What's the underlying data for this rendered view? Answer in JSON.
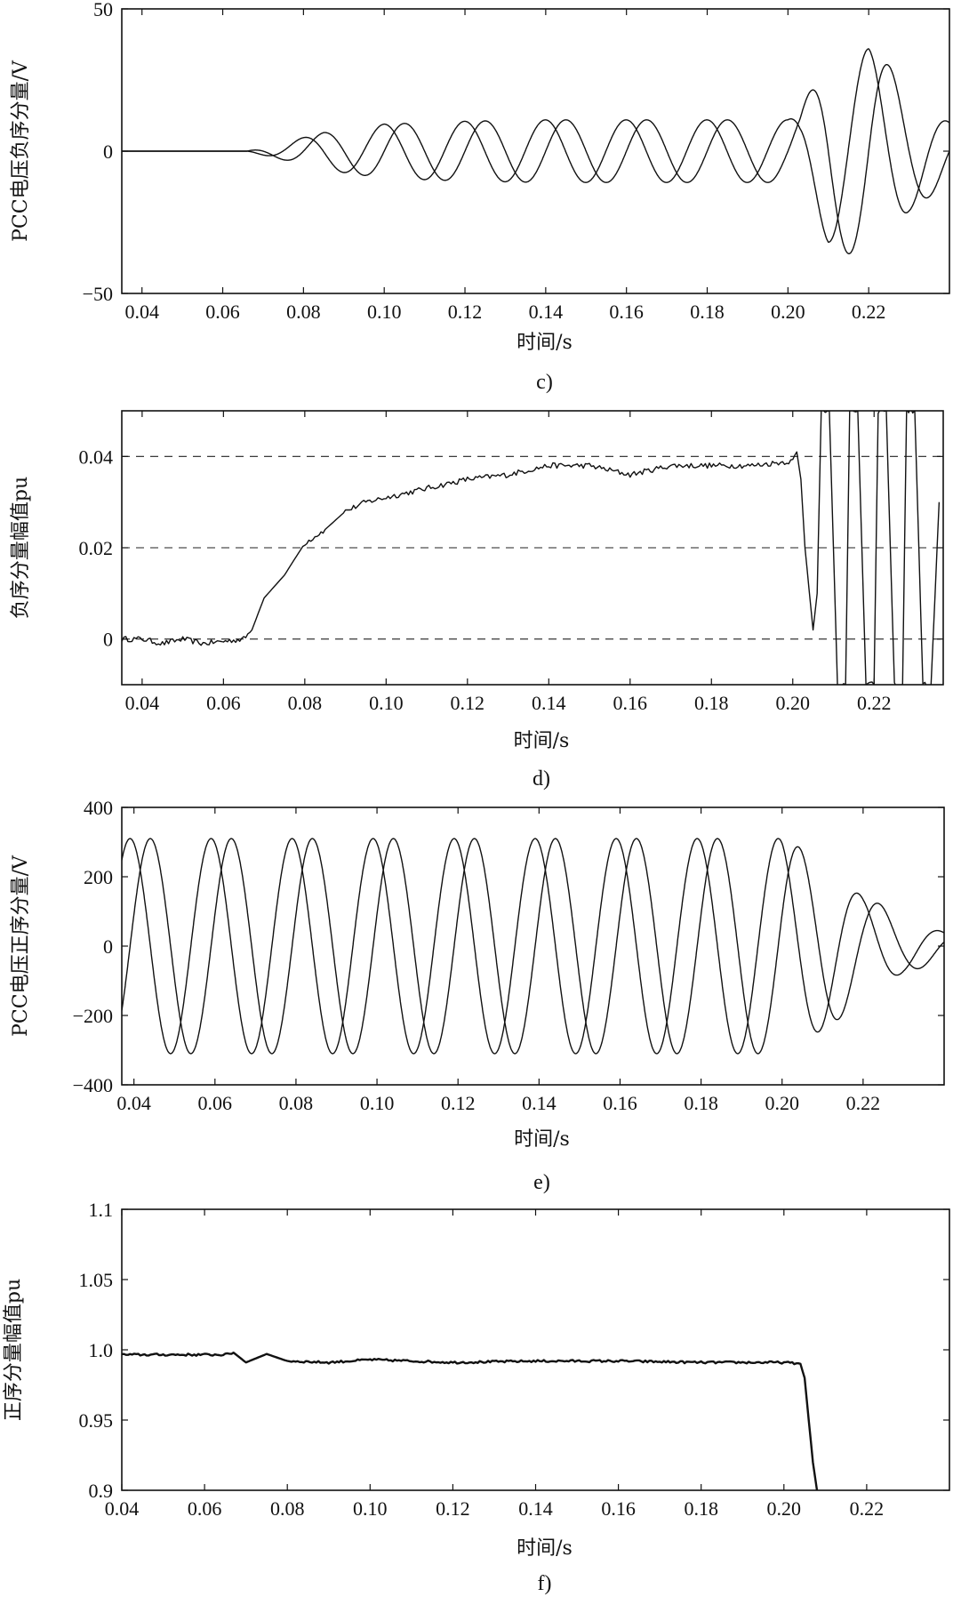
{
  "chart_data": [
    {
      "id": "c",
      "type": "line",
      "panel_label": "c)",
      "xlabel": "时间/s",
      "ylabel": "PCC电压负序分量/V",
      "xlim": [
        0.035,
        0.24
      ],
      "ylim": [
        -50,
        50
      ],
      "xticks": [
        0.04,
        0.06,
        0.08,
        0.1,
        0.12,
        0.14,
        0.16,
        0.18,
        0.2,
        0.22
      ],
      "xtick_labels": [
        "0.04",
        "0.06",
        "0.08",
        "0.10",
        "0.12",
        "0.14",
        "0.16",
        "0.18",
        "0.20",
        "0.22"
      ],
      "yticks": [
        -50,
        0,
        50
      ],
      "ytick_labels": [
        "−50",
        "0",
        "50"
      ],
      "grid": false,
      "series": [
        {
          "kind": "sine",
          "x_start": 0.035,
          "x_end": 0.24,
          "freq": 50,
          "phase": 0,
          "offset": 0,
          "envelope": [
            [
              0.035,
              0
            ],
            [
              0.066,
              0
            ],
            [
              0.075,
              3
            ],
            [
              0.085,
              6.5
            ],
            [
              0.1,
              9.5
            ],
            [
              0.12,
              10.5
            ],
            [
              0.14,
              11
            ],
            [
              0.16,
              11
            ],
            [
              0.18,
              11
            ],
            [
              0.2,
              11
            ],
            [
              0.203,
              14
            ],
            [
              0.21,
              34
            ],
            [
              0.22,
              38
            ],
            [
              0.23,
              22
            ],
            [
              0.24,
              10
            ]
          ]
        },
        {
          "kind": "sine",
          "x_start": 0.035,
          "x_end": 0.24,
          "freq": 50,
          "phase": 1.6,
          "offset": 0,
          "envelope": [
            [
              0.035,
              0
            ],
            [
              0.066,
              0
            ],
            [
              0.075,
              3
            ],
            [
              0.085,
              6.5
            ],
            [
              0.1,
              9.5
            ],
            [
              0.12,
              10.5
            ],
            [
              0.14,
              11
            ],
            [
              0.16,
              11
            ],
            [
              0.18,
              11
            ],
            [
              0.2,
              11
            ],
            [
              0.203,
              14
            ],
            [
              0.21,
              32
            ],
            [
              0.22,
              36
            ],
            [
              0.23,
              21
            ],
            [
              0.24,
              10
            ]
          ]
        }
      ]
    },
    {
      "id": "d",
      "type": "line",
      "panel_label": "d)",
      "xlabel": "时间/s",
      "ylabel": "负序分量幅值pu",
      "xlim": [
        0.035,
        0.237
      ],
      "ylim": [
        -0.01,
        0.05
      ],
      "xticks": [
        0.04,
        0.06,
        0.08,
        0.1,
        0.12,
        0.14,
        0.16,
        0.18,
        0.2,
        0.22
      ],
      "xtick_labels": [
        "0.04",
        "0.06",
        "0.08",
        "0.10",
        "0.12",
        "0.14",
        "0.16",
        "0.18",
        "0.20",
        "0.22"
      ],
      "yticks": [
        0,
        0.02,
        0.04
      ],
      "ytick_labels": [
        "0",
        "0.02",
        "0.04"
      ],
      "grid": true,
      "grid_style": "dashed-horizontal",
      "series": [
        {
          "kind": "points",
          "noise": 0.0006,
          "points": [
            [
              0.035,
              0.0
            ],
            [
              0.04,
              0.0
            ],
            [
              0.045,
              -0.001
            ],
            [
              0.05,
              0.0
            ],
            [
              0.055,
              -0.001
            ],
            [
              0.06,
              -0.0005
            ],
            [
              0.065,
              0.0
            ],
            [
              0.067,
              0.002
            ],
            [
              0.07,
              0.009
            ],
            [
              0.075,
              0.014
            ],
            [
              0.08,
              0.021
            ],
            [
              0.085,
              0.024
            ],
            [
              0.09,
              0.028
            ],
            [
              0.095,
              0.03
            ],
            [
              0.1,
              0.031
            ],
            [
              0.105,
              0.032
            ],
            [
              0.11,
              0.033
            ],
            [
              0.12,
              0.035
            ],
            [
              0.13,
              0.036
            ],
            [
              0.14,
              0.038
            ],
            [
              0.15,
              0.038
            ],
            [
              0.16,
              0.036
            ],
            [
              0.17,
              0.038
            ],
            [
              0.18,
              0.038
            ],
            [
              0.19,
              0.038
            ],
            [
              0.2,
              0.039
            ],
            [
              0.201,
              0.041
            ],
            [
              0.202,
              0.035
            ],
            [
              0.203,
              0.02
            ],
            [
              0.205,
              0.002
            ],
            [
              0.206,
              0.01
            ],
            [
              0.207,
              0.05
            ],
            [
              0.209,
              0.05
            ],
            [
              0.211,
              -0.01
            ],
            [
              0.213,
              -0.01
            ],
            [
              0.214,
              0.05
            ],
            [
              0.216,
              0.05
            ],
            [
              0.218,
              -0.01
            ],
            [
              0.22,
              -0.01
            ],
            [
              0.221,
              0.05
            ],
            [
              0.223,
              0.05
            ],
            [
              0.225,
              -0.01
            ],
            [
              0.227,
              -0.01
            ],
            [
              0.228,
              0.05
            ],
            [
              0.23,
              0.05
            ],
            [
              0.232,
              -0.01
            ],
            [
              0.234,
              -0.01
            ],
            [
              0.236,
              0.03
            ]
          ]
        }
      ]
    },
    {
      "id": "e",
      "type": "line",
      "panel_label": "e)",
      "xlabel": "时间/s",
      "ylabel": "PCC电压正序分量/V",
      "xlim": [
        0.037,
        0.24
      ],
      "ylim": [
        -400,
        400
      ],
      "xticks": [
        0.04,
        0.06,
        0.08,
        0.1,
        0.12,
        0.14,
        0.16,
        0.18,
        0.2,
        0.22
      ],
      "xtick_labels": [
        "0.04",
        "0.06",
        "0.08",
        "0.10",
        "0.12",
        "0.14",
        "0.16",
        "0.18",
        "0.20",
        "0.22"
      ],
      "yticks": [
        -400,
        -200,
        0,
        200,
        400
      ],
      "ytick_labels": [
        "−400",
        "−200",
        "0",
        "200",
        "400"
      ],
      "grid": false,
      "series": [
        {
          "kind": "sine",
          "x_start": 0.037,
          "x_end": 0.24,
          "freq": 50,
          "phase": 0.3,
          "offset": 0,
          "envelope": [
            [
              0.037,
              310
            ],
            [
              0.2,
              310
            ],
            [
              0.21,
              250
            ],
            [
              0.22,
              150
            ],
            [
              0.23,
              80
            ],
            [
              0.24,
              40
            ]
          ]
        },
        {
          "kind": "sine",
          "x_start": 0.037,
          "x_end": 0.24,
          "freq": 50,
          "phase": 1.87,
          "offset": 0,
          "envelope": [
            [
              0.037,
              310
            ],
            [
              0.2,
              310
            ],
            [
              0.21,
              240
            ],
            [
              0.22,
              140
            ],
            [
              0.23,
              75
            ],
            [
              0.24,
              40
            ]
          ]
        }
      ]
    },
    {
      "id": "f",
      "type": "line",
      "panel_label": "f)",
      "xlabel": "时间/s",
      "ylabel": "正序分量幅值pu",
      "xlim": [
        0.04,
        0.24
      ],
      "ylim": [
        0.9,
        1.1
      ],
      "xticks": [
        0.04,
        0.06,
        0.08,
        0.1,
        0.12,
        0.14,
        0.16,
        0.18,
        0.2,
        0.22
      ],
      "xtick_labels": [
        "0.04",
        "0.06",
        "0.08",
        "0.10",
        "0.12",
        "0.14",
        "0.16",
        "0.18",
        "0.20",
        "0.22"
      ],
      "yticks": [
        0.9,
        0.95,
        1.0,
        1.05,
        1.1
      ],
      "ytick_labels": [
        "0.9",
        "0.95",
        "1.0",
        "1.05",
        "1.1"
      ],
      "grid": false,
      "series": [
        {
          "kind": "points",
          "noise": 0.0008,
          "bold": true,
          "points": [
            [
              0.04,
              0.9965
            ],
            [
              0.065,
              0.9965
            ],
            [
              0.067,
              0.998
            ],
            [
              0.07,
              0.991
            ],
            [
              0.075,
              0.997
            ],
            [
              0.08,
              0.992
            ],
            [
              0.09,
              0.991
            ],
            [
              0.1,
              0.993
            ],
            [
              0.12,
              0.991
            ],
            [
              0.14,
              0.992
            ],
            [
              0.16,
              0.992
            ],
            [
              0.18,
              0.991
            ],
            [
              0.2,
              0.991
            ],
            [
              0.204,
              0.99
            ],
            [
              0.205,
              0.98
            ],
            [
              0.206,
              0.95
            ],
            [
              0.207,
              0.92
            ],
            [
              0.208,
              0.9
            ]
          ]
        }
      ]
    }
  ]
}
